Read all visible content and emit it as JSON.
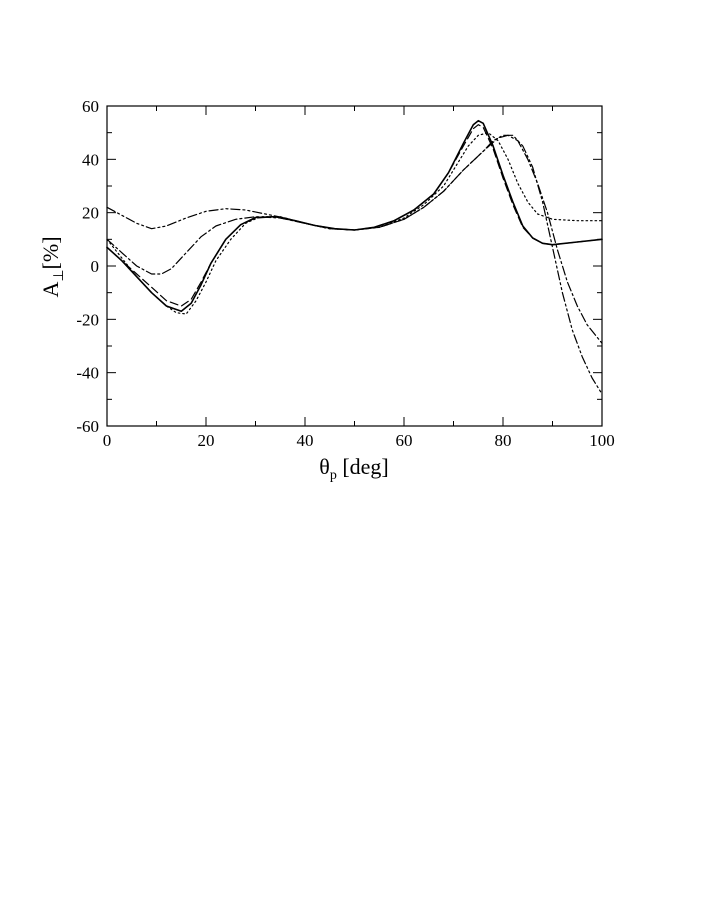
{
  "chart_data": {
    "type": "line",
    "xlabel": {
      "main": "θ",
      "sub": "p",
      "rest": " [deg]"
    },
    "ylabel": {
      "main": "A",
      "sub": "⊥",
      "rest": "[%]"
    },
    "xlim": [
      0,
      100
    ],
    "ylim": [
      -60,
      60
    ],
    "xticks": [
      0,
      20,
      40,
      60,
      80,
      100
    ],
    "yticks": [
      -60,
      -40,
      -20,
      0,
      20,
      40,
      60
    ],
    "x_minor_step": 10,
    "y_minor_step": 10,
    "grid": false,
    "series": [
      {
        "style": "solid",
        "points": [
          [
            0,
            7
          ],
          [
            3,
            2
          ],
          [
            6,
            -4
          ],
          [
            9,
            -10
          ],
          [
            12,
            -15
          ],
          [
            15,
            -17
          ],
          [
            17,
            -14
          ],
          [
            19,
            -7
          ],
          [
            21,
            1
          ],
          [
            24,
            10
          ],
          [
            27,
            15.5
          ],
          [
            30,
            18.2
          ],
          [
            34,
            18.5
          ],
          [
            38,
            17
          ],
          [
            42,
            15.2
          ],
          [
            46,
            14
          ],
          [
            50,
            13.5
          ],
          [
            54,
            14.5
          ],
          [
            58,
            17
          ],
          [
            62,
            21
          ],
          [
            66,
            27
          ],
          [
            69,
            35
          ],
          [
            72,
            46
          ],
          [
            74,
            53
          ],
          [
            75,
            54.5
          ],
          [
            76,
            53.5
          ],
          [
            78,
            45
          ],
          [
            80,
            34
          ],
          [
            82,
            24
          ],
          [
            84,
            15
          ],
          [
            86,
            10.5
          ],
          [
            88,
            8.5
          ],
          [
            90,
            8
          ],
          [
            95,
            9
          ],
          [
            100,
            10
          ]
        ]
      },
      {
        "style": "dashed",
        "points": [
          [
            0,
            7
          ],
          [
            3,
            2
          ],
          [
            6,
            -3
          ],
          [
            9,
            -8
          ],
          [
            12,
            -13
          ],
          [
            15,
            -15
          ],
          [
            17,
            -12.5
          ],
          [
            19,
            -6
          ],
          [
            21,
            1
          ],
          [
            24,
            10
          ],
          [
            27,
            15.5
          ],
          [
            30,
            18
          ],
          [
            34,
            18.5
          ],
          [
            38,
            17
          ],
          [
            42,
            15.2
          ],
          [
            46,
            14
          ],
          [
            50,
            13.5
          ],
          [
            54,
            14.5
          ],
          [
            58,
            17
          ],
          [
            62,
            21
          ],
          [
            66,
            27
          ],
          [
            69,
            35
          ],
          [
            72,
            45
          ],
          [
            74,
            51.5
          ],
          [
            75,
            53
          ],
          [
            76,
            52
          ],
          [
            78,
            44
          ],
          [
            80,
            33
          ],
          [
            82,
            23
          ],
          [
            84,
            14.5
          ],
          [
            86,
            10.5
          ],
          [
            88,
            8.5
          ],
          [
            90,
            8
          ],
          [
            95,
            9
          ],
          [
            100,
            10
          ]
        ]
      },
      {
        "style": "dotted",
        "points": [
          [
            0,
            10
          ],
          [
            3,
            3
          ],
          [
            6,
            -4
          ],
          [
            9,
            -10
          ],
          [
            12,
            -15
          ],
          [
            14,
            -17.5
          ],
          [
            16,
            -18
          ],
          [
            18,
            -13
          ],
          [
            20,
            -6
          ],
          [
            22,
            2
          ],
          [
            25,
            10
          ],
          [
            28,
            16
          ],
          [
            31,
            18.5
          ],
          [
            35,
            18.5
          ],
          [
            40,
            16
          ],
          [
            45,
            14
          ],
          [
            50,
            13.5
          ],
          [
            55,
            14.5
          ],
          [
            60,
            18
          ],
          [
            64,
            23
          ],
          [
            68,
            30
          ],
          [
            71,
            39
          ],
          [
            73,
            45
          ],
          [
            75,
            49
          ],
          [
            77,
            50
          ],
          [
            79,
            47
          ],
          [
            81,
            40
          ],
          [
            83,
            31
          ],
          [
            85,
            24
          ],
          [
            87,
            19.5
          ],
          [
            90,
            17.5
          ],
          [
            95,
            17
          ],
          [
            100,
            17
          ]
        ]
      },
      {
        "style": "dashdot",
        "points": [
          [
            0,
            10
          ],
          [
            3,
            5
          ],
          [
            6,
            0
          ],
          [
            9,
            -3
          ],
          [
            11,
            -3
          ],
          [
            13,
            -1
          ],
          [
            16,
            5
          ],
          [
            19,
            11
          ],
          [
            22,
            15
          ],
          [
            26,
            17.5
          ],
          [
            30,
            18.5
          ],
          [
            35,
            18
          ],
          [
            40,
            16
          ],
          [
            45,
            14
          ],
          [
            50,
            13.5
          ],
          [
            55,
            14.5
          ],
          [
            60,
            17.5
          ],
          [
            64,
            22
          ],
          [
            68,
            28
          ],
          [
            72,
            36
          ],
          [
            76,
            43
          ],
          [
            79,
            48
          ],
          [
            81,
            49
          ],
          [
            83,
            47
          ],
          [
            85,
            40
          ],
          [
            87,
            31
          ],
          [
            89,
            20
          ],
          [
            91,
            6
          ],
          [
            93,
            -6
          ],
          [
            95,
            -15
          ],
          [
            97,
            -22
          ],
          [
            100,
            -29
          ]
        ]
      },
      {
        "style": "dashdotdot",
        "points": [
          [
            0,
            22
          ],
          [
            3,
            19
          ],
          [
            6,
            16
          ],
          [
            9,
            14
          ],
          [
            12,
            15
          ],
          [
            16,
            18
          ],
          [
            20,
            20.5
          ],
          [
            24,
            21.5
          ],
          [
            28,
            21
          ],
          [
            32,
            19.5
          ],
          [
            36,
            18
          ],
          [
            40,
            16
          ],
          [
            45,
            14
          ],
          [
            50,
            13.5
          ],
          [
            55,
            14.5
          ],
          [
            60,
            17.5
          ],
          [
            64,
            22
          ],
          [
            68,
            28
          ],
          [
            72,
            36
          ],
          [
            76,
            43
          ],
          [
            78,
            47
          ],
          [
            80,
            49
          ],
          [
            82,
            49
          ],
          [
            84,
            45
          ],
          [
            86,
            37
          ],
          [
            88,
            24
          ],
          [
            90,
            7
          ],
          [
            92,
            -10
          ],
          [
            94,
            -24
          ],
          [
            96,
            -34
          ],
          [
            98,
            -42
          ],
          [
            100,
            -48
          ]
        ]
      }
    ]
  }
}
